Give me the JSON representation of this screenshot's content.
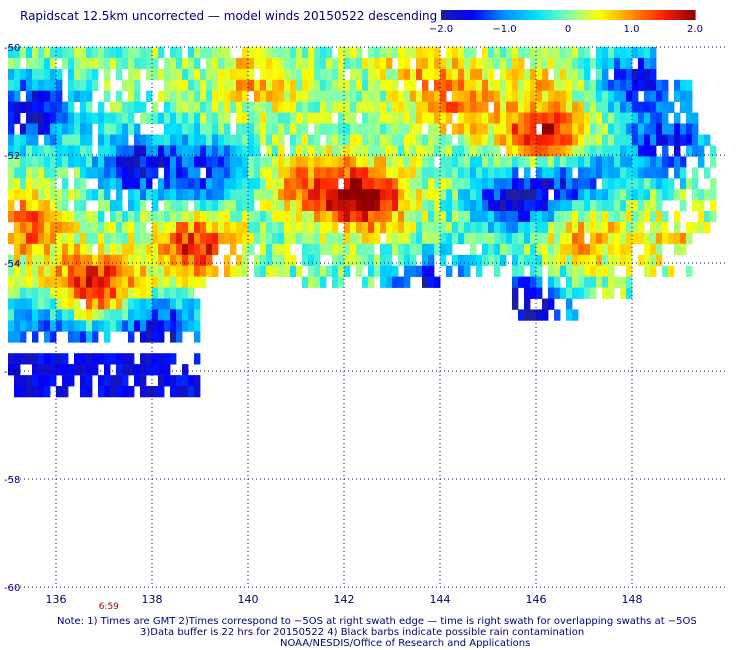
{
  "title": "Rapidscat 12.5km uncorrected — model winds 20150522 descending",
  "colorbar": {
    "labels": [
      "−2.0",
      "−1.0",
      "0",
      "1.0",
      "2.0"
    ],
    "values": [
      -2.0,
      -1.0,
      0,
      1.0,
      2.0
    ],
    "range": [
      -2.0,
      2.0
    ],
    "colors": [
      "#1e1ea0",
      "#0000ff",
      "#0090ff",
      "#00e0ff",
      "#80ffb0",
      "#ffff00",
      "#ff9000",
      "#ff2000",
      "#900000"
    ]
  },
  "chart_data": {
    "type": "heatmap",
    "title": "Rapidscat 12.5km uncorrected — model winds 20150522 descending",
    "xlabel": "",
    "ylabel": "",
    "xlim": [
      135.0,
      150.0
    ],
    "ylim": [
      -60,
      -50
    ],
    "x_ticks": [
      136,
      138,
      140,
      142,
      144,
      146,
      148
    ],
    "x_tick_labels": [
      "136",
      "138",
      "140",
      "142",
      "144",
      "146",
      "148"
    ],
    "y_ticks": [
      -50,
      -52,
      -54,
      -56,
      -58,
      -60
    ],
    "y_tick_labels": [
      "-50",
      "-52",
      "-54",
      "-56",
      "-58",
      "-60"
    ],
    "grid": true,
    "value_range": [
      -2.0,
      2.0
    ],
    "time_label": {
      "text": "6:59",
      "lon": 137.1
    },
    "hot_spots": [
      {
        "lon": 142.4,
        "lat": -52.8,
        "value": 2.0
      },
      {
        "lon": 146.2,
        "lat": -51.7,
        "value": 1.9
      },
      {
        "lon": 136.8,
        "lat": -54.4,
        "value": 1.6
      },
      {
        "lon": 138.9,
        "lat": -53.7,
        "value": 1.5
      },
      {
        "lon": 135.3,
        "lat": -53.3,
        "value": 1.2
      },
      {
        "lon": 144.3,
        "lat": -51.0,
        "value": 1.0
      },
      {
        "lon": 147.0,
        "lat": -53.5,
        "value": 0.9
      },
      {
        "lon": 140.2,
        "lat": -50.6,
        "value": 0.8
      },
      {
        "lon": 143.5,
        "lat": -50.3,
        "value": 0.6
      },
      {
        "lon": 146.0,
        "lat": -50.6,
        "value": 0.5
      },
      {
        "lon": 141.2,
        "lat": -52.5,
        "value": 0.9
      },
      {
        "lon": 149.0,
        "lat": -53.6,
        "value": 0.6
      }
    ],
    "cold_spots": [
      {
        "lon": 135.5,
        "lat": -51.2,
        "value": -1.8
      },
      {
        "lon": 136.6,
        "lat": -55.9,
        "value": -1.8
      },
      {
        "lon": 145.6,
        "lat": -52.8,
        "value": -1.7
      },
      {
        "lon": 137.7,
        "lat": -52.2,
        "value": -1.5
      },
      {
        "lon": 145.8,
        "lat": -54.8,
        "value": -1.8
      },
      {
        "lon": 143.8,
        "lat": -54.5,
        "value": -1.6
      },
      {
        "lon": 148.7,
        "lat": -51.8,
        "value": -1.4
      },
      {
        "lon": 148.2,
        "lat": -50.6,
        "value": -1.5
      },
      {
        "lon": 139.2,
        "lat": -52.3,
        "value": -1.2
      },
      {
        "lon": 146.8,
        "lat": -52.4,
        "value": -1.3
      },
      {
        "lon": 138.2,
        "lat": -55.3,
        "value": -1.7
      },
      {
        "lon": 135.6,
        "lat": -55.2,
        "value": -1.0
      }
    ]
  },
  "notes": {
    "line1": "Note: 1) Times are GMT 2)Times correspond to −5OS at right swath edge — time is right swath for overlapping swaths at −5OS",
    "line2": "3)Data buffer is 22 hrs for 20150522 4) Black barbs indicate possible rain contamination",
    "line3": "NOAA/NESDIS/Office of Research and Applications"
  }
}
